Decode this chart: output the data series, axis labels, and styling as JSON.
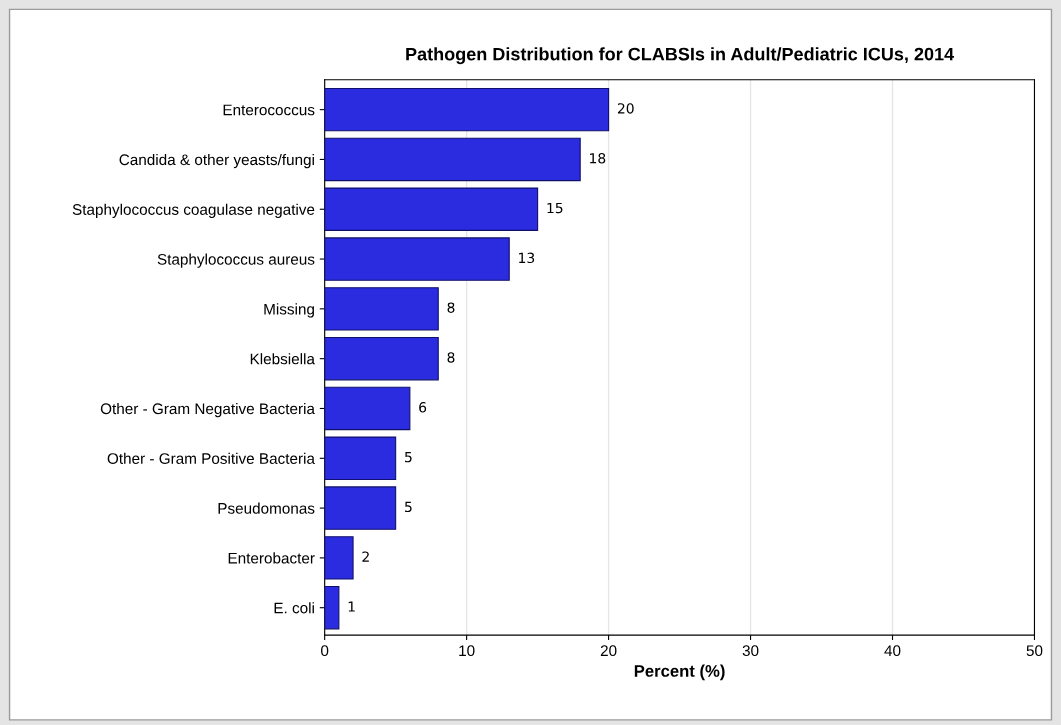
{
  "chart_data": {
    "type": "bar",
    "orientation": "horizontal",
    "title": "Pathogen Distribution for CLABSIs in Adult/Pediatric ICUs, 2014",
    "xlabel": "Percent (%)",
    "categories": [
      "Enterococcus",
      "Candida & other yeasts/fungi",
      "Staphylococcus coagulase negative",
      "Staphylococcus aureus",
      "Missing",
      "Klebsiella",
      "Other - Gram Negative Bacteria",
      "Other - Gram Positive Bacteria",
      "Pseudomonas",
      "Enterobacter",
      "E. coli"
    ],
    "values": [
      20,
      18,
      15,
      13,
      8,
      8,
      6,
      5,
      5,
      2,
      1
    ],
    "color": "#2b2be0",
    "xlim": [
      0,
      50
    ],
    "xticks": [
      0,
      10,
      20,
      30,
      40,
      50
    ],
    "grid": "x",
    "data_labels": true,
    "legend": false
  }
}
